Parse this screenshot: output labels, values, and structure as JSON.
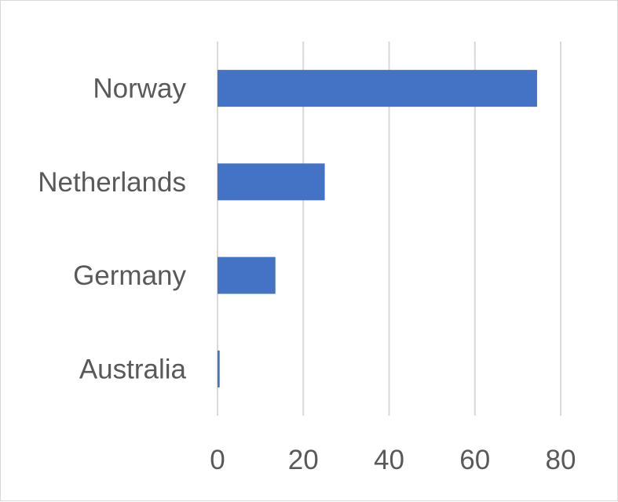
{
  "chart_data": {
    "type": "bar",
    "orientation": "horizontal",
    "categories": [
      "Norway",
      "Netherlands",
      "Germany",
      "Australia"
    ],
    "values": [
      74.5,
      25,
      13.5,
      0.5
    ],
    "xlim": [
      0,
      80
    ],
    "x_ticks": [
      0,
      20,
      40,
      60,
      80
    ],
    "x_tick_labels": [
      "0",
      "20",
      "40",
      "60",
      "80"
    ],
    "grid": "vertical",
    "legend": "none",
    "bar_color": "#4472c4",
    "grid_color": "#d9d9d9"
  }
}
